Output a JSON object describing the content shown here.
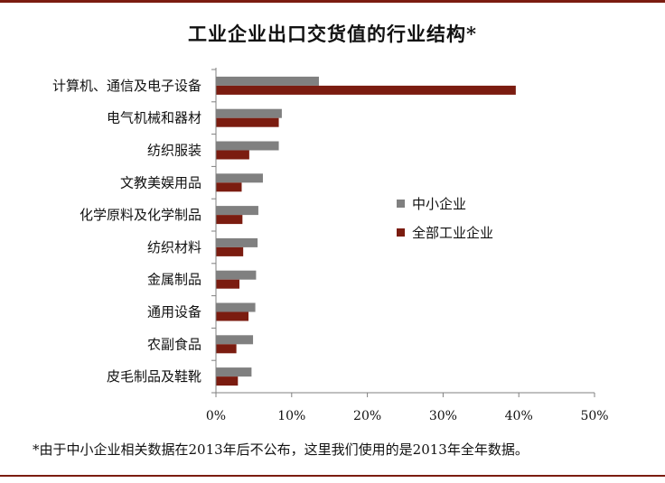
{
  "chart_data": {
    "type": "bar",
    "orientation": "horizontal",
    "title": "工业企业出口交货值的行业结构*",
    "categories": [
      "计算机、通信及电子设备",
      "电气机械和器材",
      "纺织服装",
      "文教美娱用品",
      "化学原料及化学制品",
      "纺织材料",
      "金属制品",
      "通用设备",
      "农副食品",
      "皮毛制品及鞋靴"
    ],
    "series": [
      {
        "name": "中小企业",
        "color": "#808080",
        "values": [
          13.6,
          8.7,
          8.3,
          6.2,
          5.6,
          5.5,
          5.3,
          5.2,
          4.9,
          4.7
        ]
      },
      {
        "name": "全部工业企业",
        "color": "#7b1c10",
        "values": [
          39.6,
          8.3,
          4.4,
          3.4,
          3.5,
          3.6,
          3.1,
          4.3,
          2.7,
          2.9
        ]
      }
    ],
    "xlim": [
      0,
      50
    ],
    "x_ticks": [
      0,
      10,
      20,
      30,
      40,
      50
    ],
    "x_tick_labels": [
      "0%",
      "10%",
      "20%",
      "30%",
      "40%",
      "50%"
    ],
    "grid": false,
    "legend_position": "center-right"
  },
  "footnote": "*由于中小企业相关数据在2013年后不公布，这里我们使用的是2013年全年数据。"
}
